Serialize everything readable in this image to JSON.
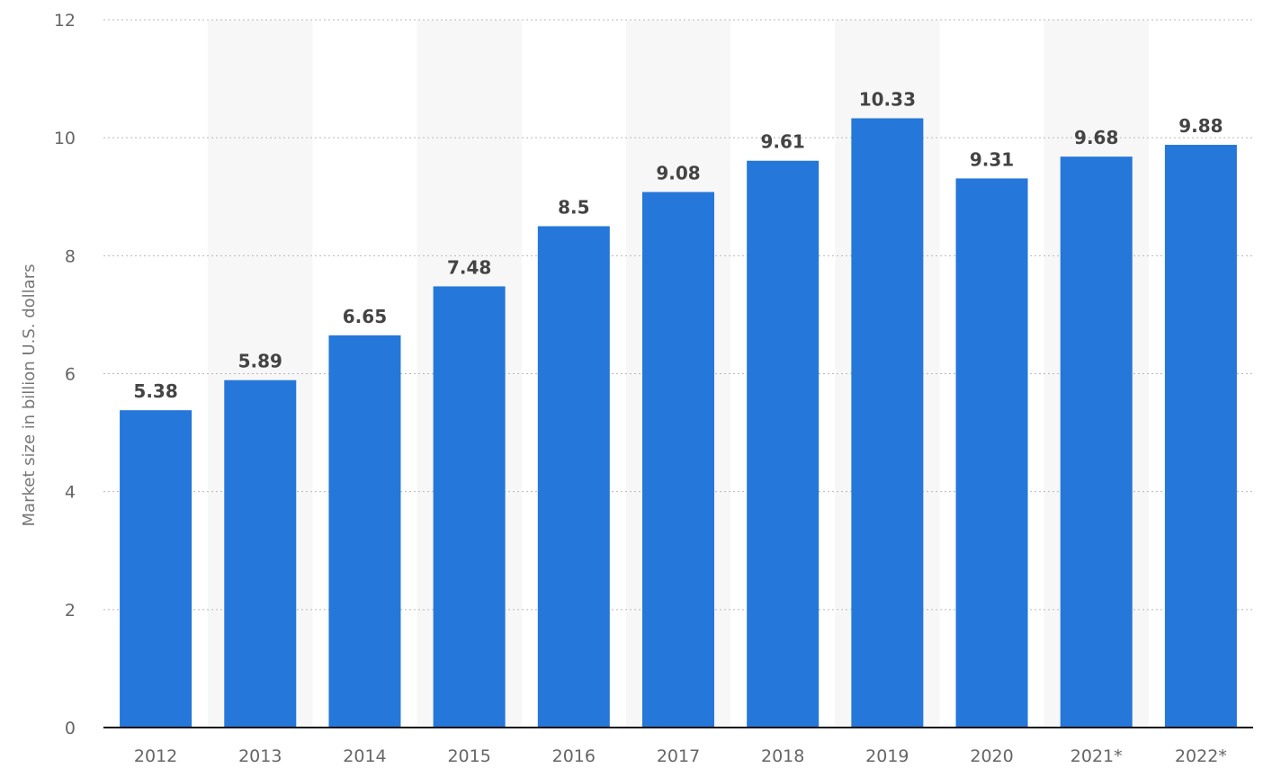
{
  "chart_data": {
    "type": "bar",
    "categories": [
      "2012",
      "2013",
      "2014",
      "2015",
      "2016",
      "2017",
      "2018",
      "2019",
      "2020",
      "2021*",
      "2022*"
    ],
    "values": [
      5.38,
      5.89,
      6.65,
      7.48,
      8.5,
      9.08,
      9.61,
      10.33,
      9.31,
      9.68,
      9.88
    ],
    "value_labels": [
      "5.38",
      "5.89",
      "6.65",
      "7.48",
      "8.5",
      "9.08",
      "9.61",
      "10.33",
      "9.31",
      "9.68",
      "9.88"
    ],
    "ylabel": "Market size in billion U.S. dollars",
    "ylim": [
      0,
      12
    ],
    "yticks": [
      0,
      2,
      4,
      6,
      8,
      10,
      12
    ],
    "ytick_labels": [
      "0",
      "2",
      "4",
      "6",
      "8",
      "10",
      "12"
    ],
    "grid": true,
    "grid_style": "dotted",
    "alternating_bands": true,
    "legend": "none",
    "colors": {
      "bar": "#2577d9",
      "band": "#f7f7f7",
      "grid": "#b8b8b8",
      "axis": "#111111",
      "value_label": "#444444",
      "tick_label": "#666666"
    }
  }
}
